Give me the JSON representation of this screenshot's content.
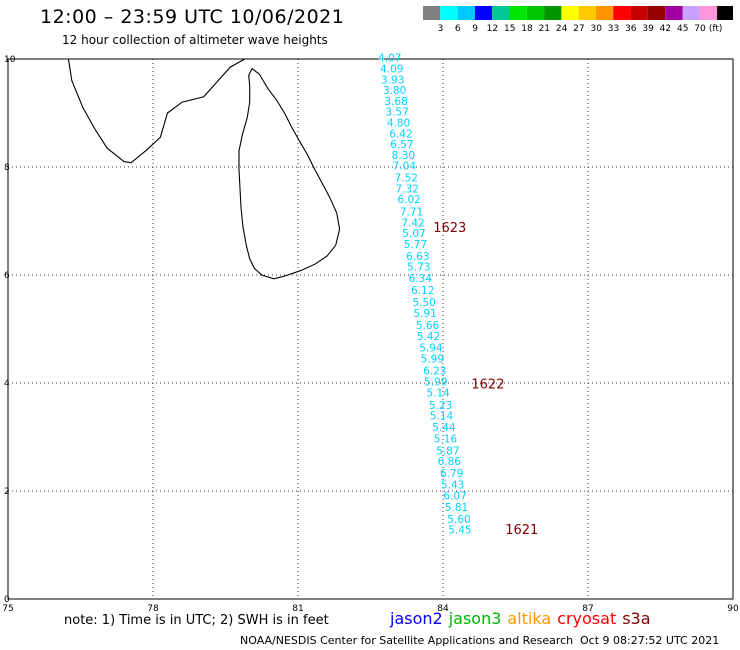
{
  "header": {
    "title": "12:00 – 23:59 UTC 10/06/2021",
    "subtitle": "12 hour collection of altimeter wave heights"
  },
  "colorbar": {
    "unit": "(ft)",
    "bins": [
      {
        "label": "",
        "color": "#808080"
      },
      {
        "label": "3",
        "color": "#00ffff"
      },
      {
        "label": "6",
        "color": "#00c8ff"
      },
      {
        "label": "9",
        "color": "#0000ff"
      },
      {
        "label": "12",
        "color": "#00c896"
      },
      {
        "label": "15",
        "color": "#00e600"
      },
      {
        "label": "18",
        "color": "#00c800"
      },
      {
        "label": "21",
        "color": "#009600"
      },
      {
        "label": "24",
        "color": "#ffff00"
      },
      {
        "label": "27",
        "color": "#ffc800"
      },
      {
        "label": "30",
        "color": "#ff9600"
      },
      {
        "label": "33",
        "color": "#ff0000"
      },
      {
        "label": "36",
        "color": "#c80000"
      },
      {
        "label": "39",
        "color": "#960000"
      },
      {
        "label": "42",
        "color": "#a000a0"
      },
      {
        "label": "45",
        "color": "#c8a0ff"
      },
      {
        "label": "70",
        "color": "#ff96dc"
      },
      {
        "label": "",
        "color": "#000000"
      }
    ]
  },
  "map": {
    "lon_range": [
      75,
      90
    ],
    "lat_range": [
      0,
      10
    ],
    "lon_ticks": [
      "75",
      "78",
      "81",
      "84",
      "87",
      "90"
    ],
    "lat_ticks": [
      "0",
      "2",
      "4",
      "6",
      "8",
      "10"
    ],
    "grid": true
  },
  "track": {
    "color": "#00d2ff",
    "points": [
      {
        "lon": 82.9,
        "lat": 9.95,
        "value": "4.07"
      },
      {
        "lon": 82.94,
        "lat": 9.75,
        "value": "4.09"
      },
      {
        "lon": 82.96,
        "lat": 9.55,
        "value": "3.93"
      },
      {
        "lon": 83.0,
        "lat": 9.35,
        "value": "3.80"
      },
      {
        "lon": 83.03,
        "lat": 9.15,
        "value": "3.68"
      },
      {
        "lon": 83.05,
        "lat": 8.95,
        "value": "3.57"
      },
      {
        "lon": 83.08,
        "lat": 8.75,
        "value": "4.80"
      },
      {
        "lon": 83.13,
        "lat": 8.55,
        "value": "6.42"
      },
      {
        "lon": 83.15,
        "lat": 8.35,
        "value": "6.57"
      },
      {
        "lon": 83.18,
        "lat": 8.15,
        "value": "8.30"
      },
      {
        "lon": 83.2,
        "lat": 7.95,
        "value": "7.04"
      },
      {
        "lon": 83.24,
        "lat": 7.73,
        "value": "7.52"
      },
      {
        "lon": 83.26,
        "lat": 7.53,
        "value": "7.32"
      },
      {
        "lon": 83.3,
        "lat": 7.33,
        "value": "6.02"
      },
      {
        "lon": 83.35,
        "lat": 7.1,
        "value": "7.71"
      },
      {
        "lon": 83.38,
        "lat": 6.9,
        "value": "7.42"
      },
      {
        "lon": 83.4,
        "lat": 6.7,
        "value": "5.07"
      },
      {
        "lon": 83.43,
        "lat": 6.5,
        "value": "5.77"
      },
      {
        "lon": 83.48,
        "lat": 6.28,
        "value": "6.63"
      },
      {
        "lon": 83.5,
        "lat": 6.08,
        "value": "5.73"
      },
      {
        "lon": 83.53,
        "lat": 5.87,
        "value": "6.34"
      },
      {
        "lon": 83.58,
        "lat": 5.65,
        "value": "6.12"
      },
      {
        "lon": 83.61,
        "lat": 5.43,
        "value": "5.50"
      },
      {
        "lon": 83.63,
        "lat": 5.22,
        "value": "5.91"
      },
      {
        "lon": 83.68,
        "lat": 5.0,
        "value": "5.66"
      },
      {
        "lon": 83.7,
        "lat": 4.8,
        "value": "5.42"
      },
      {
        "lon": 83.75,
        "lat": 4.58,
        "value": "5.94"
      },
      {
        "lon": 83.78,
        "lat": 4.38,
        "value": "5.99"
      },
      {
        "lon": 83.83,
        "lat": 4.16,
        "value": "6.23"
      },
      {
        "lon": 83.85,
        "lat": 3.95,
        "value": "5.99"
      },
      {
        "lon": 83.9,
        "lat": 3.75,
        "value": "5.14"
      },
      {
        "lon": 83.95,
        "lat": 3.52,
        "value": "5.23"
      },
      {
        "lon": 83.97,
        "lat": 3.32,
        "value": "5.14"
      },
      {
        "lon": 84.02,
        "lat": 3.11,
        "value": "5.44"
      },
      {
        "lon": 84.05,
        "lat": 2.9,
        "value": "5.16"
      },
      {
        "lon": 84.1,
        "lat": 2.68,
        "value": "5.87"
      },
      {
        "lon": 84.13,
        "lat": 2.48,
        "value": "6.86"
      },
      {
        "lon": 84.18,
        "lat": 2.26,
        "value": "6.79"
      },
      {
        "lon": 84.2,
        "lat": 2.05,
        "value": "5.43"
      },
      {
        "lon": 84.25,
        "lat": 1.84,
        "value": "6.07"
      },
      {
        "lon": 84.28,
        "lat": 1.63,
        "value": "5.81"
      },
      {
        "lon": 84.33,
        "lat": 1.41,
        "value": "5.60"
      },
      {
        "lon": 84.35,
        "lat": 1.21,
        "value": "5.45"
      }
    ]
  },
  "time_labels": {
    "color": "#800000",
    "items": [
      {
        "lon": 84.14,
        "lat": 6.8,
        "text": "1623"
      },
      {
        "lon": 84.93,
        "lat": 3.9,
        "text": "1622"
      },
      {
        "lon": 85.63,
        "lat": 1.2,
        "text": "1621"
      }
    ]
  },
  "coastline": {
    "sri_lanka": [
      [
        80.05,
        9.82
      ],
      [
        80.2,
        9.72
      ],
      [
        80.28,
        9.6
      ],
      [
        80.38,
        9.45
      ],
      [
        80.55,
        9.25
      ],
      [
        80.72,
        9.0
      ],
      [
        80.88,
        8.72
      ],
      [
        81.05,
        8.45
      ],
      [
        81.2,
        8.22
      ],
      [
        81.35,
        7.95
      ],
      [
        81.5,
        7.7
      ],
      [
        81.65,
        7.45
      ],
      [
        81.8,
        7.15
      ],
      [
        81.86,
        6.85
      ],
      [
        81.78,
        6.55
      ],
      [
        81.6,
        6.35
      ],
      [
        81.35,
        6.2
      ],
      [
        81.05,
        6.08
      ],
      [
        80.72,
        5.98
      ],
      [
        80.5,
        5.93
      ],
      [
        80.25,
        6.0
      ],
      [
        80.1,
        6.12
      ],
      [
        80.0,
        6.3
      ],
      [
        79.93,
        6.55
      ],
      [
        79.86,
        6.9
      ],
      [
        79.82,
        7.25
      ],
      [
        79.8,
        7.6
      ],
      [
        79.78,
        7.95
      ],
      [
        79.78,
        8.3
      ],
      [
        79.85,
        8.6
      ],
      [
        79.95,
        8.92
      ],
      [
        80.0,
        9.2
      ],
      [
        80.0,
        9.5
      ],
      [
        79.98,
        9.7
      ],
      [
        80.05,
        9.82
      ]
    ],
    "india": [
      [
        76.25,
        10.0
      ],
      [
        76.32,
        9.6
      ],
      [
        76.55,
        9.1
      ],
      [
        76.8,
        8.7
      ],
      [
        77.05,
        8.35
      ],
      [
        77.4,
        8.1
      ],
      [
        77.55,
        8.08
      ],
      [
        77.85,
        8.3
      ],
      [
        78.15,
        8.55
      ],
      [
        78.3,
        9.0
      ],
      [
        78.6,
        9.2
      ],
      [
        79.05,
        9.3
      ],
      [
        79.3,
        9.55
      ],
      [
        79.6,
        9.85
      ],
      [
        79.9,
        10.0
      ]
    ]
  },
  "footnote": "note: 1) Time is in UTC; 2) SWH is in feet",
  "satellites": [
    {
      "name": "jason2",
      "color": "#0000ff"
    },
    {
      "name": "jason3",
      "color": "#00b400"
    },
    {
      "name": "altika",
      "color": "#ff9600"
    },
    {
      "name": "cryosat",
      "color": "#ff0000"
    },
    {
      "name": "s3a",
      "color": "#800000"
    }
  ],
  "credit": "NOAA/NESDIS Center for Satellite Applications and Research",
  "credit_date": "Oct  9 08:27:52 UTC 2021"
}
